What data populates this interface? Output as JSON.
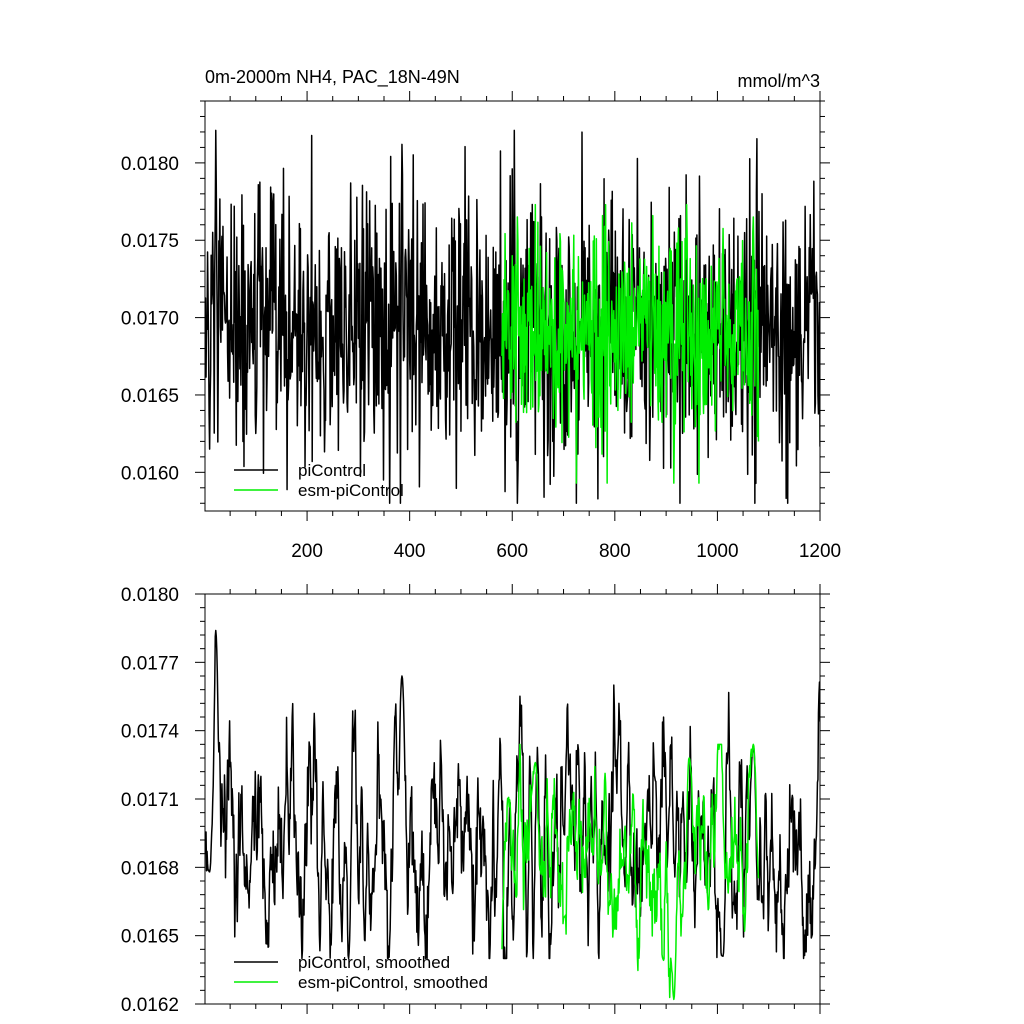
{
  "chart_data": [
    {
      "type": "line",
      "title": "0m-2000m NH4, PAC_18N-49N",
      "units": "mmol/m^3",
      "xlim": [
        1,
        1200
      ],
      "ylim": [
        0.01575,
        0.0184
      ],
      "x_ticks": [
        200,
        400,
        600,
        800,
        1000,
        1200
      ],
      "x_tick_labels": [
        "200",
        "400",
        "600",
        "800",
        "1000",
        "1200"
      ],
      "y_ticks": [
        0.016,
        0.0165,
        0.017,
        0.0175,
        0.018
      ],
      "y_tick_labels": [
        "0.0160",
        "0.0165",
        "0.0170",
        "0.0175",
        "0.0180"
      ],
      "grid": false,
      "legend_position": "bottom-left",
      "series": [
        {
          "name": "piControl",
          "color": "#000000",
          "x_range": [
            1,
            1200
          ],
          "mean": 0.01693,
          "range": [
            0.0158,
            0.01821
          ],
          "peaks": [
            {
              "x": 22,
              "y": 0.01821
            },
            {
              "x": 385,
              "y": 0.01812
            },
            {
              "x": 285,
              "y": 0.01787
            }
          ],
          "troughs": [
            {
              "x": 10,
              "y": 0.01615
            },
            {
              "x": 610,
              "y": 0.0158
            }
          ]
        },
        {
          "name": "esm-piControl",
          "color": "#00ee00",
          "x_range": [
            580,
            1080
          ],
          "mean": 0.0169,
          "range": [
            0.01593,
            0.01773
          ],
          "peaks": [
            {
              "x": 940,
              "y": 0.01773
            },
            {
              "x": 610,
              "y": 0.01765
            },
            {
              "x": 1070,
              "y": 0.01765
            }
          ],
          "troughs": [
            {
              "x": 915,
              "y": 0.01593
            }
          ]
        }
      ]
    },
    {
      "type": "line",
      "title": "",
      "xlim": [
        1,
        1200
      ],
      "ylim": [
        0.0162,
        0.018
      ],
      "x_ticks": [
        200,
        400,
        600,
        800,
        1000,
        1200
      ],
      "y_ticks": [
        0.0162,
        0.0165,
        0.0168,
        0.0171,
        0.0174,
        0.0177,
        0.018
      ],
      "y_tick_labels": [
        "0.0162",
        "0.0165",
        "0.0168",
        "0.0171",
        "0.0174",
        "0.0177",
        "0.0180"
      ],
      "grid": false,
      "legend_position": "bottom-left",
      "series": [
        {
          "name": "piControl, smoothed",
          "color": "#000000",
          "x_range": [
            1,
            1200
          ],
          "mean": 0.0169,
          "range": [
            0.0164,
            0.01784
          ],
          "peaks": [
            {
              "x": 22,
              "y": 0.01784
            },
            {
              "x": 385,
              "y": 0.01764
            },
            {
              "x": 1070,
              "y": 0.01733
            }
          ],
          "troughs": [
            {
              "x": 10,
              "y": 0.01678
            },
            {
              "x": 1010,
              "y": 0.01641
            }
          ]
        },
        {
          "name": "esm-piControl, smoothed",
          "color": "#00ee00",
          "x_range": [
            580,
            1080
          ],
          "mean": 0.01685,
          "range": [
            0.01622,
            0.01734
          ],
          "peaks": [
            {
              "x": 1070,
              "y": 0.01734
            },
            {
              "x": 945,
              "y": 0.01728
            },
            {
              "x": 645,
              "y": 0.01726
            }
          ],
          "troughs": [
            {
              "x": 915,
              "y": 0.01622
            }
          ]
        }
      ]
    }
  ]
}
